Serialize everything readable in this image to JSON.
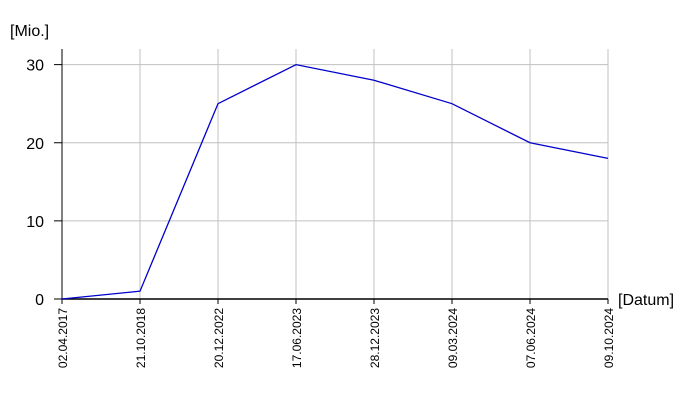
{
  "chart_data": {
    "type": "line",
    "y_label": "[Mio.]",
    "x_label": "[Datum]",
    "categories": [
      "02.04.2017",
      "21.10.2018",
      "20.12.2022",
      "17.06.2023",
      "28.12.2023",
      "09.03.2024",
      "07.06.2024",
      "09.10.2024"
    ],
    "values": [
      0,
      1,
      25,
      30,
      28,
      25,
      20,
      18
    ],
    "color": "#0000cc",
    "ylim": [
      0,
      32
    ],
    "yticks": [
      0,
      10,
      20,
      30
    ],
    "grid": true
  }
}
